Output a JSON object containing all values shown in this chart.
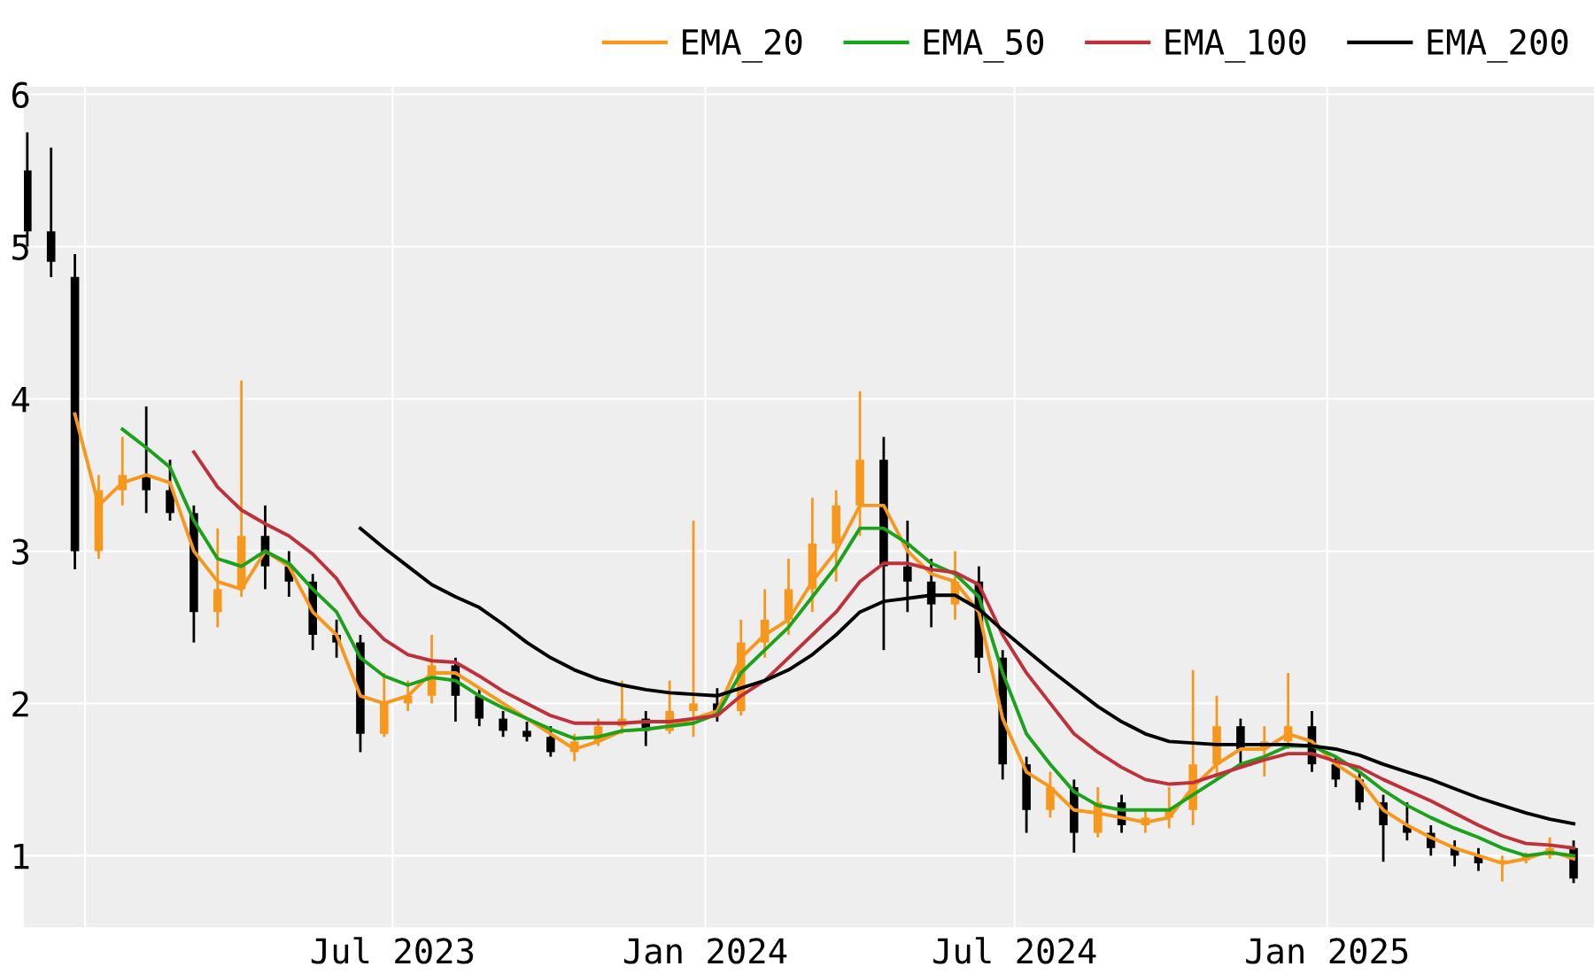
{
  "chart_data": {
    "type": "candlestick",
    "x": [
      "2022-11-28",
      "2022-12-12",
      "2022-12-26",
      "2023-01-09",
      "2023-01-23",
      "2023-02-06",
      "2023-02-20",
      "2023-03-06",
      "2023-03-20",
      "2023-04-03",
      "2023-04-17",
      "2023-05-01",
      "2023-05-15",
      "2023-05-29",
      "2023-06-12",
      "2023-06-26",
      "2023-07-10",
      "2023-07-24",
      "2023-08-07",
      "2023-08-21",
      "2023-09-04",
      "2023-09-18",
      "2023-10-02",
      "2023-10-16",
      "2023-10-30",
      "2023-11-13",
      "2023-11-27",
      "2023-12-11",
      "2023-12-25",
      "2024-01-08",
      "2024-01-22",
      "2024-02-05",
      "2024-02-19",
      "2024-03-04",
      "2024-03-18",
      "2024-04-01",
      "2024-04-15",
      "2024-04-29",
      "2024-05-13",
      "2024-05-27",
      "2024-06-10",
      "2024-06-24",
      "2024-07-08",
      "2024-07-22",
      "2024-08-05",
      "2024-08-19",
      "2024-09-02",
      "2024-09-16",
      "2024-09-30",
      "2024-10-14",
      "2024-10-28",
      "2024-11-11",
      "2024-11-25",
      "2024-12-09",
      "2024-12-23",
      "2025-01-06",
      "2025-01-20",
      "2025-02-03",
      "2025-02-17",
      "2025-03-03",
      "2025-03-17",
      "2025-03-31",
      "2025-04-14",
      "2025-04-28",
      "2025-05-12",
      "2025-05-26"
    ],
    "ohlc": [
      [
        5.5,
        5.75,
        5.0,
        5.1
      ],
      [
        5.1,
        5.65,
        4.8,
        4.9
      ],
      [
        4.8,
        4.95,
        2.88,
        3.0
      ],
      [
        3.0,
        3.5,
        2.95,
        3.4
      ],
      [
        3.4,
        3.75,
        3.3,
        3.5
      ],
      [
        3.5,
        3.95,
        3.25,
        3.4
      ],
      [
        3.4,
        3.6,
        3.2,
        3.25
      ],
      [
        3.25,
        3.3,
        2.4,
        2.6
      ],
      [
        2.6,
        3.15,
        2.5,
        2.75
      ],
      [
        2.75,
        4.12,
        2.7,
        3.1
      ],
      [
        3.1,
        3.3,
        2.75,
        2.9
      ],
      [
        2.9,
        3.0,
        2.7,
        2.8
      ],
      [
        2.8,
        2.85,
        2.35,
        2.45
      ],
      [
        2.45,
        2.55,
        2.3,
        2.4
      ],
      [
        2.4,
        2.45,
        1.68,
        1.8
      ],
      [
        1.8,
        2.2,
        1.78,
        2.0
      ],
      [
        2.0,
        2.15,
        1.95,
        2.05
      ],
      [
        2.05,
        2.45,
        2.0,
        2.25
      ],
      [
        2.25,
        2.3,
        1.88,
        2.05
      ],
      [
        2.05,
        2.1,
        1.85,
        1.9
      ],
      [
        1.9,
        1.95,
        1.78,
        1.82
      ],
      [
        1.82,
        1.88,
        1.75,
        1.78
      ],
      [
        1.78,
        1.85,
        1.65,
        1.68
      ],
      [
        1.68,
        1.8,
        1.62,
        1.75
      ],
      [
        1.75,
        1.9,
        1.72,
        1.85
      ],
      [
        1.85,
        2.15,
        1.8,
        1.9
      ],
      [
        1.9,
        1.95,
        1.72,
        1.82
      ],
      [
        1.82,
        2.15,
        1.8,
        1.95
      ],
      [
        1.95,
        3.2,
        1.78,
        2.0
      ],
      [
        2.0,
        2.1,
        1.88,
        1.95
      ],
      [
        1.95,
        2.55,
        1.92,
        2.4
      ],
      [
        2.4,
        2.75,
        2.3,
        2.55
      ],
      [
        2.55,
        2.95,
        2.45,
        2.75
      ],
      [
        2.75,
        3.35,
        2.6,
        3.05
      ],
      [
        3.05,
        3.4,
        2.8,
        3.3
      ],
      [
        3.3,
        4.05,
        3.1,
        3.6
      ],
      [
        3.6,
        3.75,
        2.35,
        2.9
      ],
      [
        2.9,
        3.2,
        2.6,
        2.8
      ],
      [
        2.8,
        2.95,
        2.5,
        2.65
      ],
      [
        2.65,
        3.0,
        2.55,
        2.8
      ],
      [
        2.8,
        2.9,
        2.2,
        2.3
      ],
      [
        2.3,
        2.35,
        1.5,
        1.6
      ],
      [
        1.6,
        1.65,
        1.15,
        1.3
      ],
      [
        1.3,
        1.55,
        1.25,
        1.45
      ],
      [
        1.45,
        1.5,
        1.02,
        1.15
      ],
      [
        1.15,
        1.45,
        1.12,
        1.35
      ],
      [
        1.35,
        1.4,
        1.15,
        1.2
      ],
      [
        1.2,
        1.3,
        1.15,
        1.25
      ],
      [
        1.25,
        1.45,
        1.18,
        1.3
      ],
      [
        1.3,
        2.22,
        1.2,
        1.6
      ],
      [
        1.6,
        2.05,
        1.5,
        1.85
      ],
      [
        1.85,
        1.9,
        1.6,
        1.7
      ],
      [
        1.7,
        1.85,
        1.52,
        1.75
      ],
      [
        1.75,
        2.2,
        1.7,
        1.85
      ],
      [
        1.85,
        1.95,
        1.55,
        1.6
      ],
      [
        1.6,
        1.65,
        1.45,
        1.5
      ],
      [
        1.5,
        1.55,
        1.3,
        1.35
      ],
      [
        1.35,
        1.4,
        0.96,
        1.2
      ],
      [
        1.2,
        1.35,
        1.1,
        1.15
      ],
      [
        1.15,
        1.2,
        1.0,
        1.05
      ],
      [
        1.05,
        1.1,
        0.93,
        1.0
      ],
      [
        1.0,
        1.05,
        0.9,
        0.95
      ],
      [
        0.95,
        1.0,
        0.83,
        0.97
      ],
      [
        0.97,
        1.02,
        0.95,
        1.0
      ],
      [
        1.0,
        1.12,
        0.98,
        1.05
      ],
      [
        1.05,
        1.1,
        0.82,
        0.85
      ]
    ],
    "colors": [
      "#000000",
      "#000000",
      "#000000",
      "#f7981d",
      "#f7981d",
      "#000000",
      "#000000",
      "#000000",
      "#f7981d",
      "#f7981d",
      "#000000",
      "#000000",
      "#000000",
      "#000000",
      "#000000",
      "#f7981d",
      "#f7981d",
      "#f7981d",
      "#000000",
      "#000000",
      "#000000",
      "#000000",
      "#000000",
      "#f7981d",
      "#f7981d",
      "#f7981d",
      "#000000",
      "#f7981d",
      "#f7981d",
      "#000000",
      "#f7981d",
      "#f7981d",
      "#f7981d",
      "#f7981d",
      "#f7981d",
      "#f7981d",
      "#000000",
      "#000000",
      "#000000",
      "#f7981d",
      "#000000",
      "#000000",
      "#000000",
      "#f7981d",
      "#000000",
      "#f7981d",
      "#000000",
      "#f7981d",
      "#f7981d",
      "#f7981d",
      "#f7981d",
      "#000000",
      "#f7981d",
      "#f7981d",
      "#000000",
      "#000000",
      "#000000",
      "#000000",
      "#000000",
      "#000000",
      "#000000",
      "#000000",
      "#f7981d",
      "#f7981d",
      "#f7981d",
      "#000000"
    ],
    "series": [
      {
        "type": "line",
        "name": "EMA_20",
        "color": "#f7981d",
        "values": [
          null,
          null,
          3.9,
          3.3,
          3.45,
          3.5,
          3.45,
          3.0,
          2.8,
          2.75,
          3.0,
          2.9,
          2.6,
          2.45,
          2.05,
          2.0,
          2.05,
          2.2,
          2.2,
          2.1,
          2.0,
          1.9,
          1.8,
          1.7,
          1.75,
          1.82,
          1.83,
          1.85,
          1.9,
          1.95,
          2.3,
          2.45,
          2.55,
          2.8,
          3.0,
          3.3,
          3.3,
          3.0,
          2.85,
          2.8,
          2.6,
          1.9,
          1.55,
          1.45,
          1.3,
          1.28,
          1.25,
          1.22,
          1.25,
          1.45,
          1.6,
          1.7,
          1.7,
          1.8,
          1.75,
          1.6,
          1.5,
          1.3,
          1.2,
          1.12,
          1.05,
          1.0,
          0.95,
          0.98,
          1.03,
          0.98
        ]
      },
      {
        "type": "line",
        "name": "EMA_50",
        "color": "#1aa31a",
        "values": [
          null,
          null,
          null,
          null,
          3.8,
          3.68,
          3.55,
          3.2,
          2.95,
          2.9,
          3.0,
          2.92,
          2.75,
          2.6,
          2.3,
          2.18,
          2.12,
          2.17,
          2.15,
          2.05,
          1.97,
          1.9,
          1.83,
          1.77,
          1.78,
          1.82,
          1.83,
          1.85,
          1.87,
          1.93,
          2.2,
          2.35,
          2.5,
          2.7,
          2.9,
          3.15,
          3.15,
          3.05,
          2.92,
          2.85,
          2.7,
          2.2,
          1.8,
          1.6,
          1.42,
          1.33,
          1.3,
          1.3,
          1.3,
          1.4,
          1.5,
          1.6,
          1.65,
          1.72,
          1.72,
          1.65,
          1.55,
          1.43,
          1.33,
          1.25,
          1.18,
          1.12,
          1.05,
          1.0,
          1.02,
          1.0
        ]
      },
      {
        "type": "line",
        "name": "EMA_100",
        "color": "#c0303a",
        "values": [
          null,
          null,
          null,
          null,
          null,
          null,
          null,
          3.65,
          3.42,
          3.27,
          3.18,
          3.1,
          2.98,
          2.82,
          2.58,
          2.42,
          2.32,
          2.28,
          2.27,
          2.18,
          2.08,
          2.0,
          1.92,
          1.87,
          1.87,
          1.87,
          1.88,
          1.88,
          1.9,
          1.92,
          2.05,
          2.15,
          2.3,
          2.45,
          2.6,
          2.8,
          2.92,
          2.92,
          2.88,
          2.86,
          2.78,
          2.45,
          2.2,
          2.0,
          1.8,
          1.68,
          1.58,
          1.5,
          1.47,
          1.48,
          1.53,
          1.58,
          1.63,
          1.67,
          1.67,
          1.62,
          1.58,
          1.5,
          1.43,
          1.36,
          1.28,
          1.2,
          1.13,
          1.08,
          1.07,
          1.05
        ]
      },
      {
        "type": "line",
        "name": "EMA_200",
        "color": "#000000",
        "values": [
          null,
          null,
          null,
          null,
          null,
          null,
          null,
          null,
          null,
          null,
          null,
          null,
          null,
          null,
          3.15,
          3.02,
          2.9,
          2.78,
          2.7,
          2.63,
          2.52,
          2.4,
          2.3,
          2.22,
          2.16,
          2.12,
          2.09,
          2.07,
          2.06,
          2.05,
          2.1,
          2.15,
          2.22,
          2.32,
          2.45,
          2.6,
          2.67,
          2.69,
          2.71,
          2.71,
          2.62,
          2.48,
          2.35,
          2.22,
          2.1,
          1.98,
          1.88,
          1.8,
          1.75,
          1.74,
          1.73,
          1.73,
          1.73,
          1.73,
          1.72,
          1.7,
          1.66,
          1.6,
          1.55,
          1.5,
          1.44,
          1.38,
          1.33,
          1.28,
          1.24,
          1.21
        ]
      }
    ],
    "xlim": [
      "2022-11-26",
      "2025-06-07"
    ],
    "xticks": [
      {
        "value": "2023-01-01",
        "label": null
      },
      {
        "value": "2023-07-01",
        "label": "Jul 2023"
      },
      {
        "value": "2024-01-01",
        "label": "Jan 2024"
      },
      {
        "value": "2024-07-01",
        "label": "Jul 2024"
      },
      {
        "value": "2025-01-01",
        "label": "Jan 2025"
      }
    ],
    "ylim": [
      0.53,
      6.05
    ],
    "yticks": [
      1,
      2,
      3,
      4,
      5,
      6
    ],
    "grid": true,
    "legend": "top right"
  }
}
